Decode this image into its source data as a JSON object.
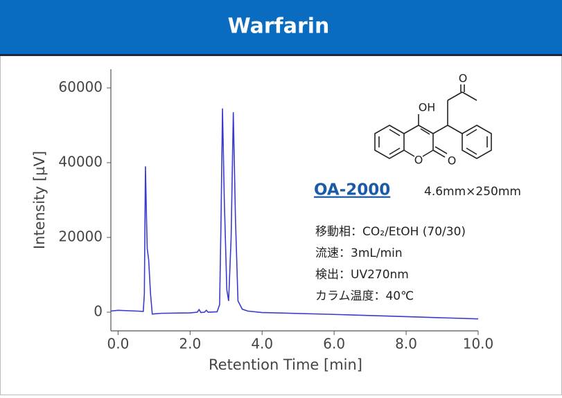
{
  "chart_data": {
    "type": "line",
    "title": "Warfarin",
    "x_label": "Retention Time [min]",
    "y_label": "Intensity [µV]",
    "xlim": [
      -0.2,
      10.0
    ],
    "ylim": [
      -5000,
      65000
    ],
    "xticks": [
      {
        "value": 0,
        "label": "0.0"
      },
      {
        "value": 2,
        "label": "2.0"
      },
      {
        "value": 4,
        "label": "4.0"
      },
      {
        "value": 6,
        "label": "6.0"
      },
      {
        "value": 8,
        "label": "8.0"
      },
      {
        "value": 10,
        "label": "10.0"
      }
    ],
    "yticks": [
      0,
      20000,
      40000,
      60000
    ],
    "color": "#3a3acc",
    "x": [
      -0.2,
      0.0,
      0.5,
      0.7,
      0.73,
      0.76,
      0.79,
      0.81,
      0.85,
      0.9,
      0.95,
      1.2,
      2.0,
      2.2,
      2.25,
      2.3,
      2.4,
      2.45,
      2.5,
      2.75,
      2.82,
      2.86,
      2.9,
      2.95,
      3.02,
      3.07,
      3.14,
      3.2,
      3.26,
      3.33,
      3.45,
      3.6,
      4.0,
      6.0,
      8.0,
      10.0
    ],
    "values": [
      300,
      500,
      300,
      200,
      5000,
      39000,
      25000,
      17000,
      14000,
      5000,
      -500,
      -300,
      -200,
      0,
      700,
      -100,
      0,
      500,
      0,
      100,
      2000,
      25000,
      54500,
      30000,
      6000,
      3000,
      20000,
      53500,
      25000,
      3000,
      800,
      300,
      -100,
      -600,
      -1200,
      -1800
    ],
    "annotations": {
      "column": "OA-2000",
      "dimensions": "4.6mm×250mm",
      "conditions": [
        "移動相：CO₂/EtOH (70/30)",
        "流速：3mL/min",
        "検出：UV270nm",
        "カラム温度：40℃"
      ],
      "structure_labels": [
        "OH",
        "O",
        "O",
        "O"
      ]
    }
  }
}
